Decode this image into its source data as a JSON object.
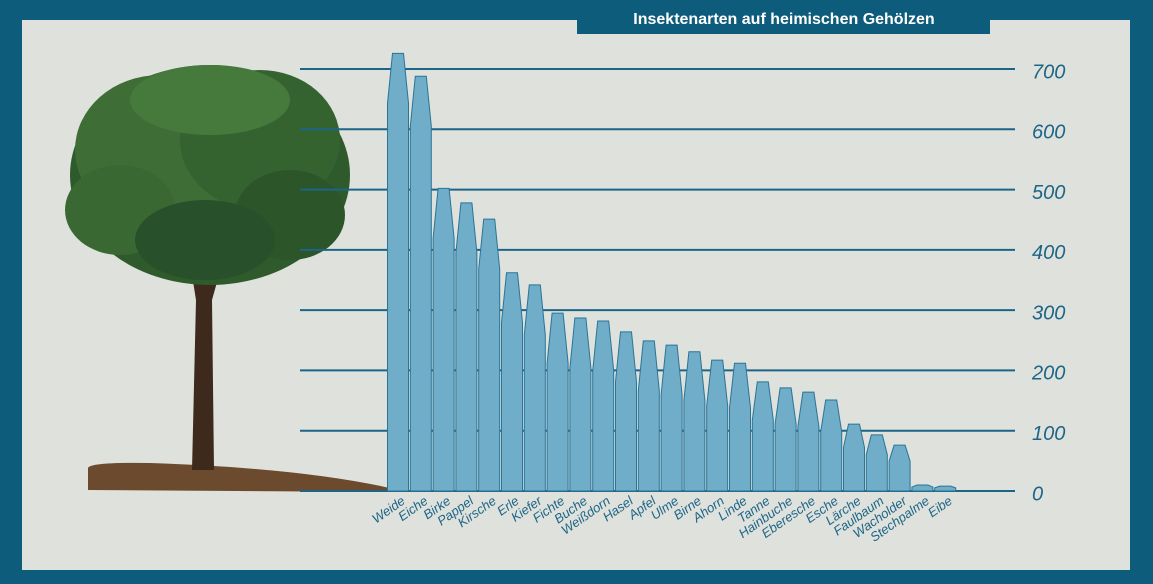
{
  "chart_data": {
    "type": "bar",
    "title": "Insektenarten auf heimischen Gehölzen",
    "categories": [
      "Weide",
      "Eiche",
      "Birke",
      "Pappel",
      "Kirsche",
      "Erle",
      "Kiefer",
      "Fichte",
      "Buche",
      "Weißdorn",
      "Hasel",
      "Apfel",
      "Ulme",
      "Birne",
      "Ahorn",
      "Linde",
      "Tanne",
      "Hainbuche",
      "Eberesche",
      "Esche",
      "Lärche",
      "Faulbaum",
      "Wacholder",
      "Stechpalme",
      "Eibe"
    ],
    "values": [
      726,
      688,
      502,
      478,
      451,
      362,
      342,
      295,
      287,
      282,
      264,
      249,
      242,
      231,
      217,
      212,
      181,
      171,
      164,
      151,
      111,
      93,
      76,
      10,
      8
    ],
    "color": "#6fadc9",
    "ylim": [
      0,
      700
    ],
    "yticks": [
      0,
      100,
      200,
      300,
      400,
      500,
      600,
      700
    ],
    "grid": true
  }
}
